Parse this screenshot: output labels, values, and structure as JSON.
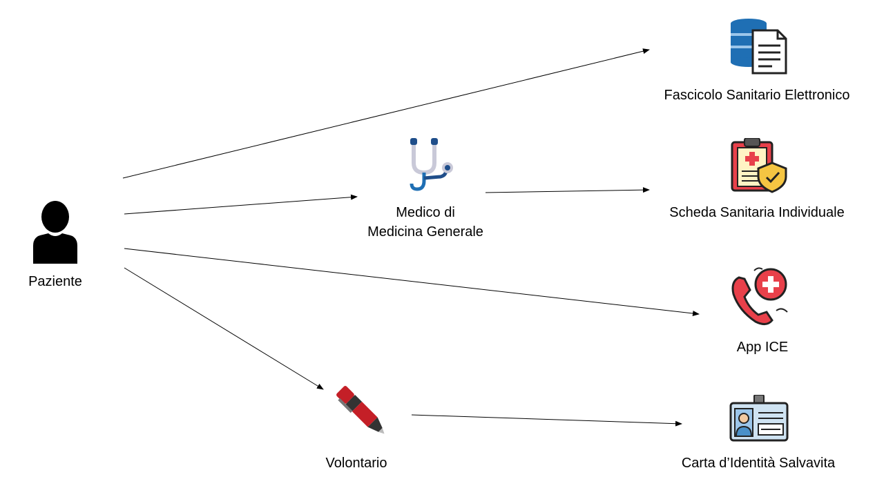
{
  "nodes": {
    "paziente": {
      "label": "Paziente",
      "icon": "person-icon"
    },
    "medico": {
      "label_line1": "Medico di",
      "label_line2": "Medicina Generale",
      "icon": "stethoscope-icon"
    },
    "volontario": {
      "label": "Volontario",
      "icon": "pen-icon"
    },
    "fascicolo": {
      "label": "Fascicolo Sanitario Elettronico",
      "icon": "database-document-icon"
    },
    "scheda": {
      "label": "Scheda Sanitaria Individuale",
      "icon": "medical-clipboard-shield-icon"
    },
    "app_ice": {
      "label": "App ICE",
      "icon": "emergency-phone-icon"
    },
    "carta": {
      "label": "Carta d’Identità Salvavita",
      "icon": "id-card-icon"
    }
  },
  "edges": [
    {
      "from": "paziente",
      "to": "fascicolo"
    },
    {
      "from": "paziente",
      "to": "medico"
    },
    {
      "from": "paziente",
      "to": "app_ice"
    },
    {
      "from": "paziente",
      "to": "volontario"
    },
    {
      "from": "medico",
      "to": "scheda"
    },
    {
      "from": "volontario",
      "to": "carta"
    }
  ],
  "colors": {
    "edge": "#000000",
    "red": "#e8404a",
    "navy": "#1f4e8a",
    "yellow": "#f5c542"
  }
}
